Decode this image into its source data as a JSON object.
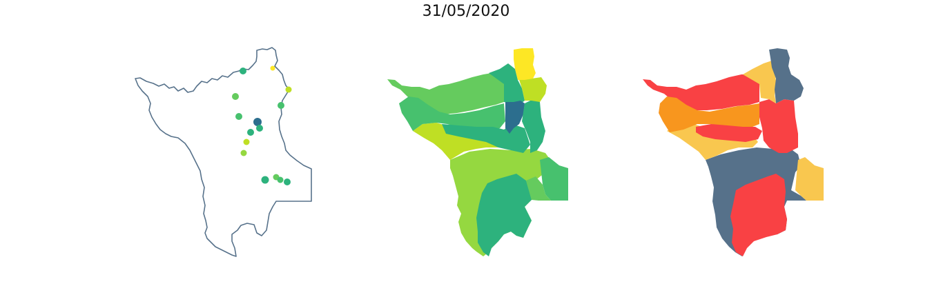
{
  "title": "31/05/2020",
  "colors": {
    "outline": "#56718a",
    "viridis_dark": "#2c6e8e",
    "viridis_teal": "#2db27d",
    "viridis_green": "#47c16e",
    "viridis_lightgreen": "#65cb5e",
    "viridis_lime": "#95d840",
    "viridis_yellowgreen": "#bfdf24",
    "viridis_yellow": "#fde725",
    "cat_slate": "#56718a",
    "cat_red": "#f94144",
    "cat_orange": "#f8961e",
    "cat_yellow": "#f9c74f"
  },
  "panels": [
    {
      "name": "point-map",
      "kind": "stations"
    },
    {
      "name": "viridis-choropleth",
      "kind": "basins"
    },
    {
      "name": "categorical-choropleth",
      "kind": "basins"
    }
  ]
}
